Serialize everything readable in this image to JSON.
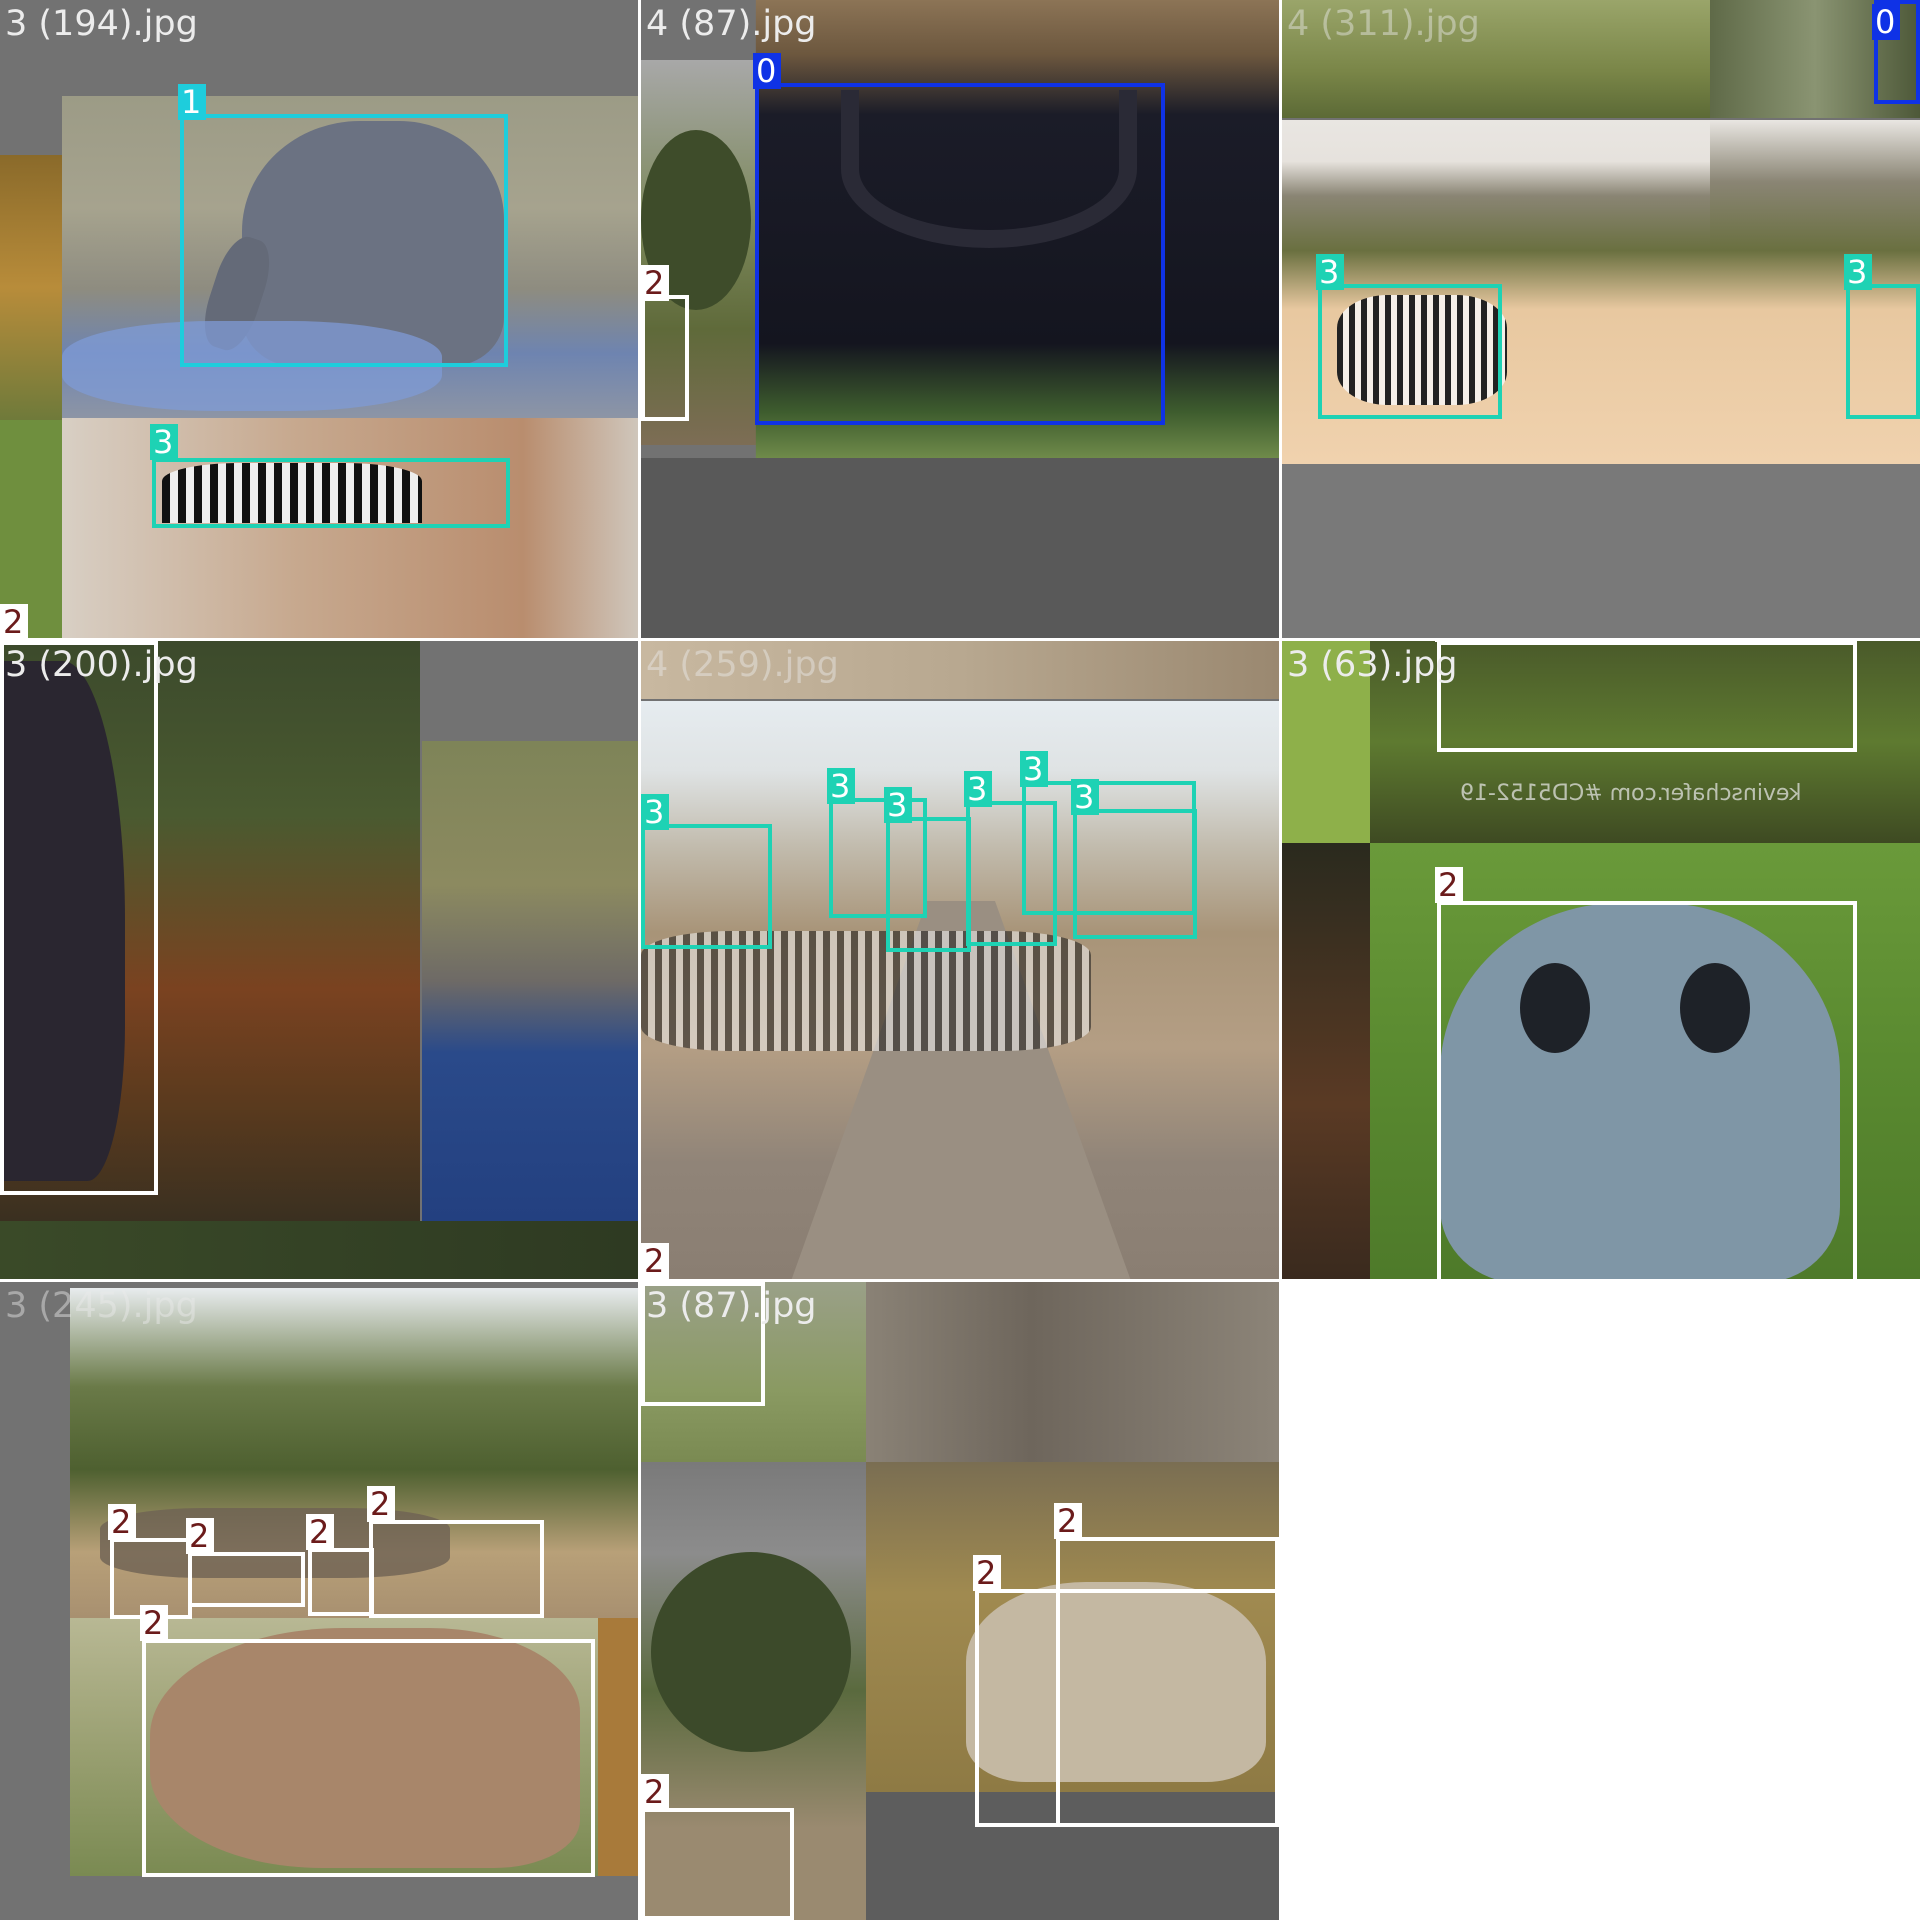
{
  "mosaic": {
    "tiles": [
      {
        "title": "3 (194).jpg"
      },
      {
        "title": "4 (87).jpg"
      },
      {
        "title": "4 (311).jpg"
      },
      {
        "title": "3 (200).jpg"
      },
      {
        "title": "4 (259).jpg"
      },
      {
        "title": "3 (63).jpg"
      },
      {
        "title": "3 (245).jpg"
      },
      {
        "title": "3 (87).jpg"
      }
    ],
    "watermark": "kevinschafer.com #CD5152-19"
  },
  "class_colors": {
    "0": "#0f32e6",
    "1": "#1ecddc",
    "2": "#ffffff",
    "3": "#1ed2b4"
  },
  "labels": {
    "t0": [
      "1",
      "3",
      "2"
    ],
    "t1": [
      "0",
      "2"
    ],
    "t2": [
      "0",
      "3",
      "3"
    ],
    "t3": [
      "2"
    ],
    "t4": [
      "3",
      "3",
      "3",
      "3",
      "3",
      "3",
      "2"
    ],
    "t5": [
      "2",
      "2"
    ],
    "t6": [
      "2",
      "2",
      "2",
      "2",
      "2"
    ],
    "t7": [
      "2",
      "2",
      "2"
    ]
  }
}
